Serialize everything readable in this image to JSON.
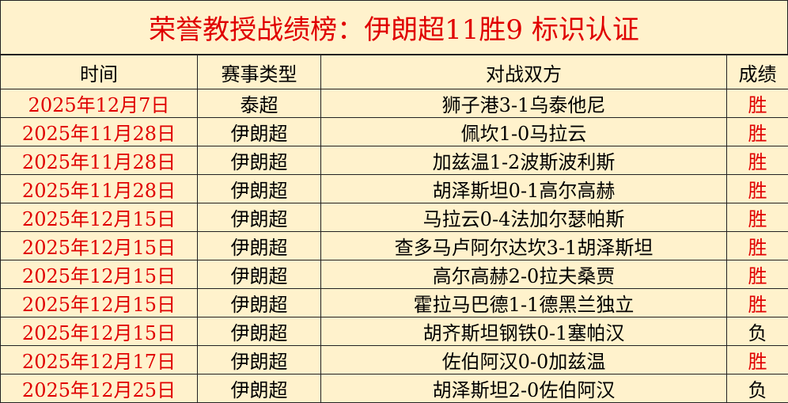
{
  "title": "荣誉教授战绩榜：伊朗超11胜9 标识认证",
  "headers": [
    "时间",
    "赛事类型",
    "对战双方",
    "成绩"
  ],
  "colors": {
    "red": "#e00000",
    "background": "#fff2cc"
  },
  "rows": [
    {
      "date": "2025年12月7日",
      "league": "泰超",
      "match": "狮子港3-1乌泰他尼",
      "result": "胜"
    },
    {
      "date": "2025年11月28日",
      "league": "伊朗超",
      "match": "佩坎1-0马拉云",
      "result": "胜"
    },
    {
      "date": "2025年11月28日",
      "league": "伊朗超",
      "match": "加兹温1-2波斯波利斯",
      "result": "胜"
    },
    {
      "date": "2025年11月28日",
      "league": "伊朗超",
      "match": "胡泽斯坦0-1高尔高赫",
      "result": "胜"
    },
    {
      "date": "2025年12月15日",
      "league": "伊朗超",
      "match": "马拉云0-4法加尔瑟帕斯",
      "result": "胜"
    },
    {
      "date": "2025年12月15日",
      "league": "伊朗超",
      "match": "查多马卢阿尔达坎3-1胡泽斯坦",
      "result": "胜"
    },
    {
      "date": "2025年12月15日",
      "league": "伊朗超",
      "match": "高尔高赫2-0拉夫桑贾",
      "result": "胜"
    },
    {
      "date": "2025年12月15日",
      "league": "伊朗超",
      "match": "霍拉马巴德1-1德黑兰独立",
      "result": "胜"
    },
    {
      "date": "2025年12月15日",
      "league": "伊朗超",
      "match": "胡齐斯坦钢铁0-1塞帕汉",
      "result": "负"
    },
    {
      "date": "2025年12月17日",
      "league": "伊朗超",
      "match": "佐伯阿汉0-0加兹温",
      "result": "胜"
    },
    {
      "date": "2025年12月25日",
      "league": "伊朗超",
      "match": "胡泽斯坦2-0佐伯阿汉",
      "result": "负"
    }
  ]
}
